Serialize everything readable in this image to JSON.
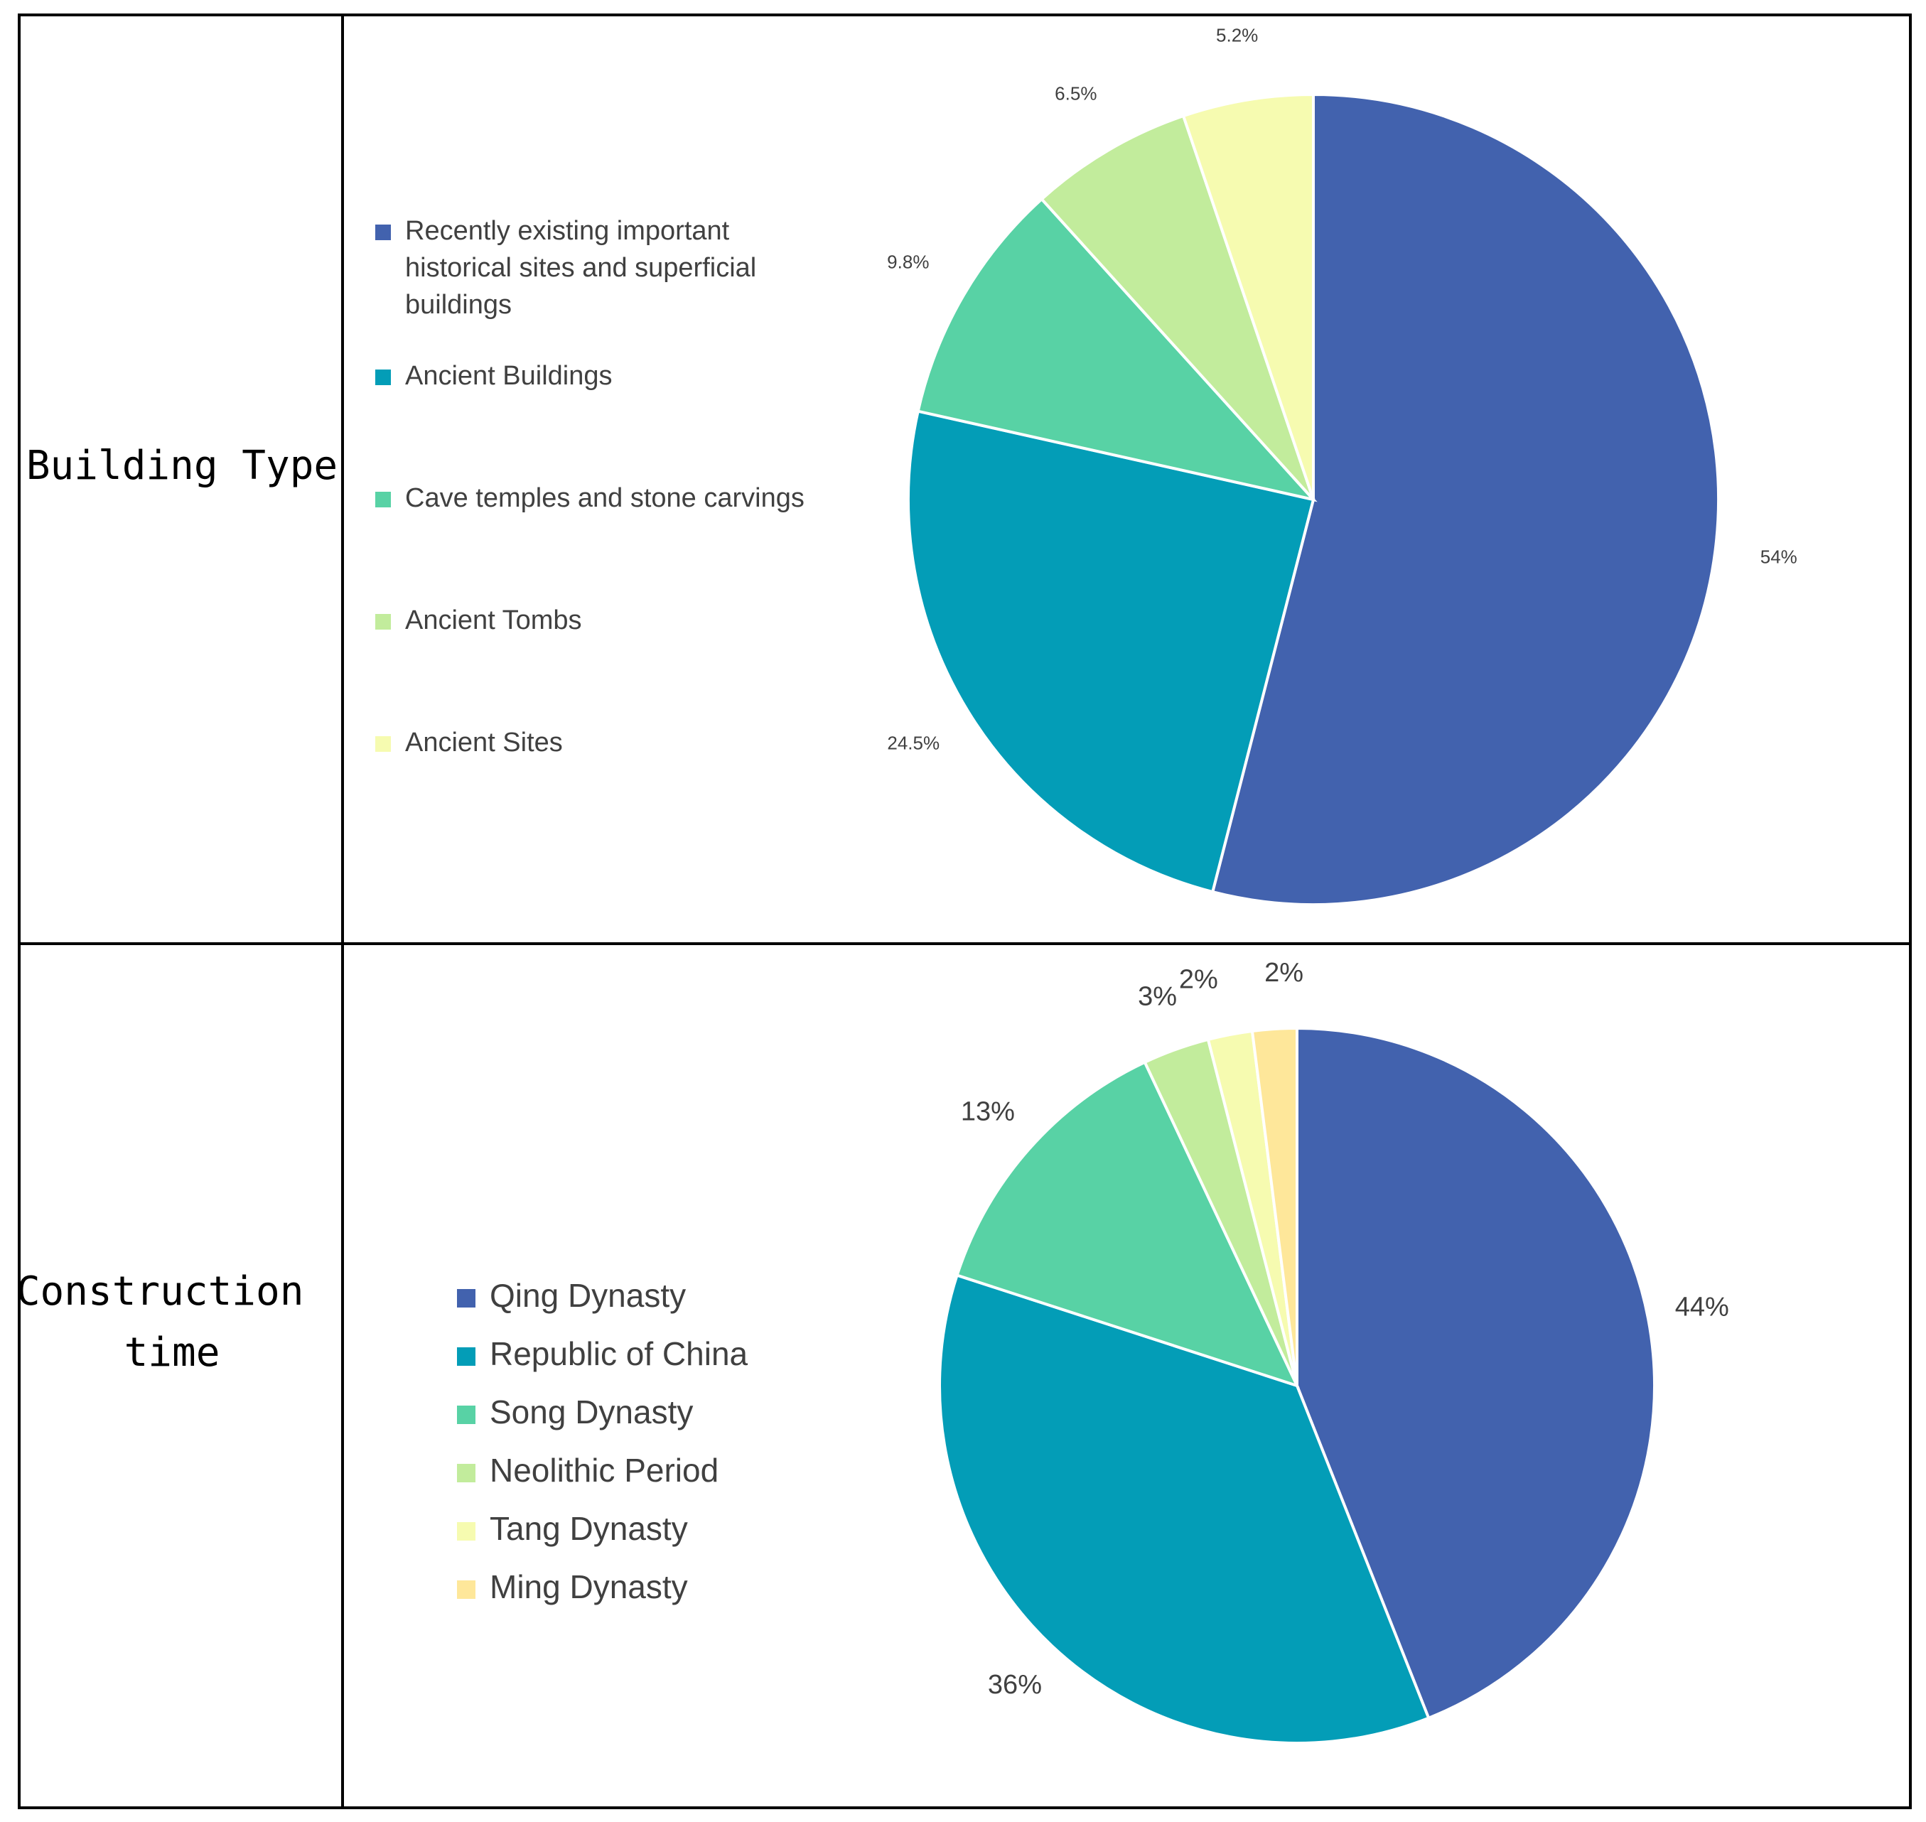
{
  "rows": [
    {
      "label": "Building Type"
    },
    {
      "label_lines": [
        "Construction",
        "time"
      ]
    }
  ],
  "chart_data": [
    {
      "type": "pie",
      "title": "",
      "start": "top, clockwise",
      "legend_position": "left",
      "series": [
        {
          "name": "Recently existing important historical sites and superficial buildings",
          "label_lines": [
            "Recently existing important",
            "historical sites and superficial",
            "buildings"
          ],
          "value": 54,
          "label": "54%",
          "color": "#4262AE"
        },
        {
          "name": "Ancient Buildings",
          "label_lines": [
            "Ancient Buildings"
          ],
          "value": 24.5,
          "label": "24.5%",
          "color": "#039DB7"
        },
        {
          "name": "Cave temples and stone carvings",
          "label_lines": [
            "Cave temples and stone carvings"
          ],
          "value": 9.8,
          "label": "9.8%",
          "color": "#58D2A5"
        },
        {
          "name": "Ancient Tombs",
          "label_lines": [
            "Ancient Tombs"
          ],
          "value": 6.5,
          "label": "6.5%",
          "color": "#C2EC9C"
        },
        {
          "name": "Ancient Sites",
          "label_lines": [
            "Ancient Sites"
          ],
          "value": 5.2,
          "label": "5.2%",
          "color": "#F6FBB0"
        }
      ]
    },
    {
      "type": "pie",
      "title": "",
      "start": "top, clockwise",
      "legend_position": "left",
      "series": [
        {
          "name": "Qing Dynasty",
          "label_lines": [
            "Qing Dynasty"
          ],
          "value": 44,
          "label": "44%",
          "color": "#4262AE"
        },
        {
          "name": "Republic of China",
          "label_lines": [
            "Republic of China"
          ],
          "value": 36,
          "label": "36%",
          "color": "#039DB7"
        },
        {
          "name": "Song Dynasty",
          "label_lines": [
            "Song Dynasty"
          ],
          "value": 13,
          "label": "13%",
          "color": "#58D2A5"
        },
        {
          "name": "Neolithic Period",
          "label_lines": [
            "Neolithic Period"
          ],
          "value": 3,
          "label": "3%",
          "color": "#C2EC9C"
        },
        {
          "name": "Tang Dynasty",
          "label_lines": [
            "Tang Dynasty"
          ],
          "value": 2,
          "label": "2%",
          "color": "#F6FBB0"
        },
        {
          "name": "Ming Dynasty",
          "label_lines": [
            "Ming Dynasty"
          ],
          "value": 2,
          "label": "2%",
          "color": "#FEE79A"
        }
      ]
    }
  ]
}
